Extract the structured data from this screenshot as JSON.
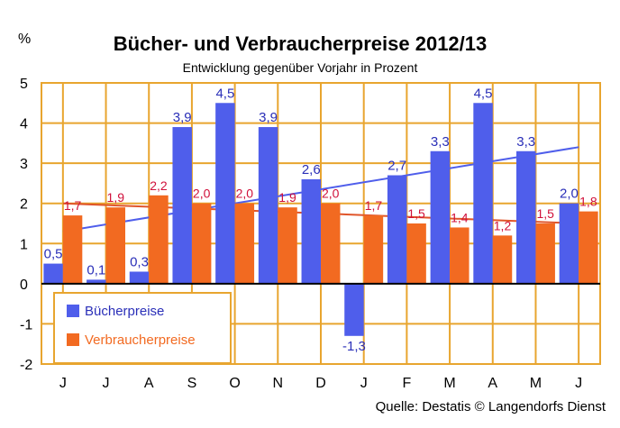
{
  "chart_data": {
    "type": "bar",
    "title": "Bücher- und Verbraucherpreise 2012/13",
    "subtitle": "Entwicklung gegenüber  Vorjahr in Prozent",
    "unit_label": "%",
    "source": "Quelle: Destatis © Langendorfs Dienst",
    "categories": [
      "J",
      "J",
      "A",
      "S",
      "O",
      "N",
      "D",
      "J",
      "F",
      "M",
      "A",
      "M",
      "J"
    ],
    "series": [
      {
        "name": "Bücherpreise",
        "color": "#4F5EEB",
        "label_color": "#2A2FB8",
        "values": [
          0.5,
          0.1,
          0.3,
          3.9,
          4.5,
          3.9,
          2.6,
          -1.3,
          2.7,
          3.3,
          4.5,
          3.3,
          2.0
        ],
        "labels": [
          "0,5",
          "0,1",
          "0,3",
          "3,9",
          "4,5",
          "3,9",
          "2,6",
          "-1,3",
          "2,7",
          "3,3",
          "4,5",
          "3,3",
          "2,0"
        ]
      },
      {
        "name": "Verbraucherpreise",
        "color": "#F26A21",
        "label_color": "#D0103A",
        "values": [
          1.7,
          1.9,
          2.2,
          2.0,
          2.0,
          1.9,
          2.0,
          1.7,
          1.5,
          1.4,
          1.2,
          1.5,
          1.8
        ],
        "labels": [
          "1,7",
          "1,9",
          "2,2",
          "2,0",
          "2,0",
          "1,9",
          "2,0",
          "1,7",
          "1,5",
          "1,4",
          "1,2",
          "1,5",
          "1,8"
        ]
      }
    ],
    "trendlines": [
      {
        "series": "Bücherpreise",
        "color": "#4F5EEB",
        "start": 1.3,
        "end": 3.4
      },
      {
        "series": "Verbraucherpreise",
        "color": "#E0552A",
        "start": 2.0,
        "end": 1.5
      }
    ],
    "ylim": [
      -2,
      5
    ],
    "yticks": [
      -2,
      -1,
      0,
      1,
      2,
      3,
      4,
      5
    ],
    "ytick_labels": [
      "-2",
      "-1",
      "0",
      "1",
      "2",
      "3",
      "4",
      "5"
    ],
    "grid": true,
    "grid_color": "#E8A52F",
    "legend_position": "bottom-left"
  }
}
